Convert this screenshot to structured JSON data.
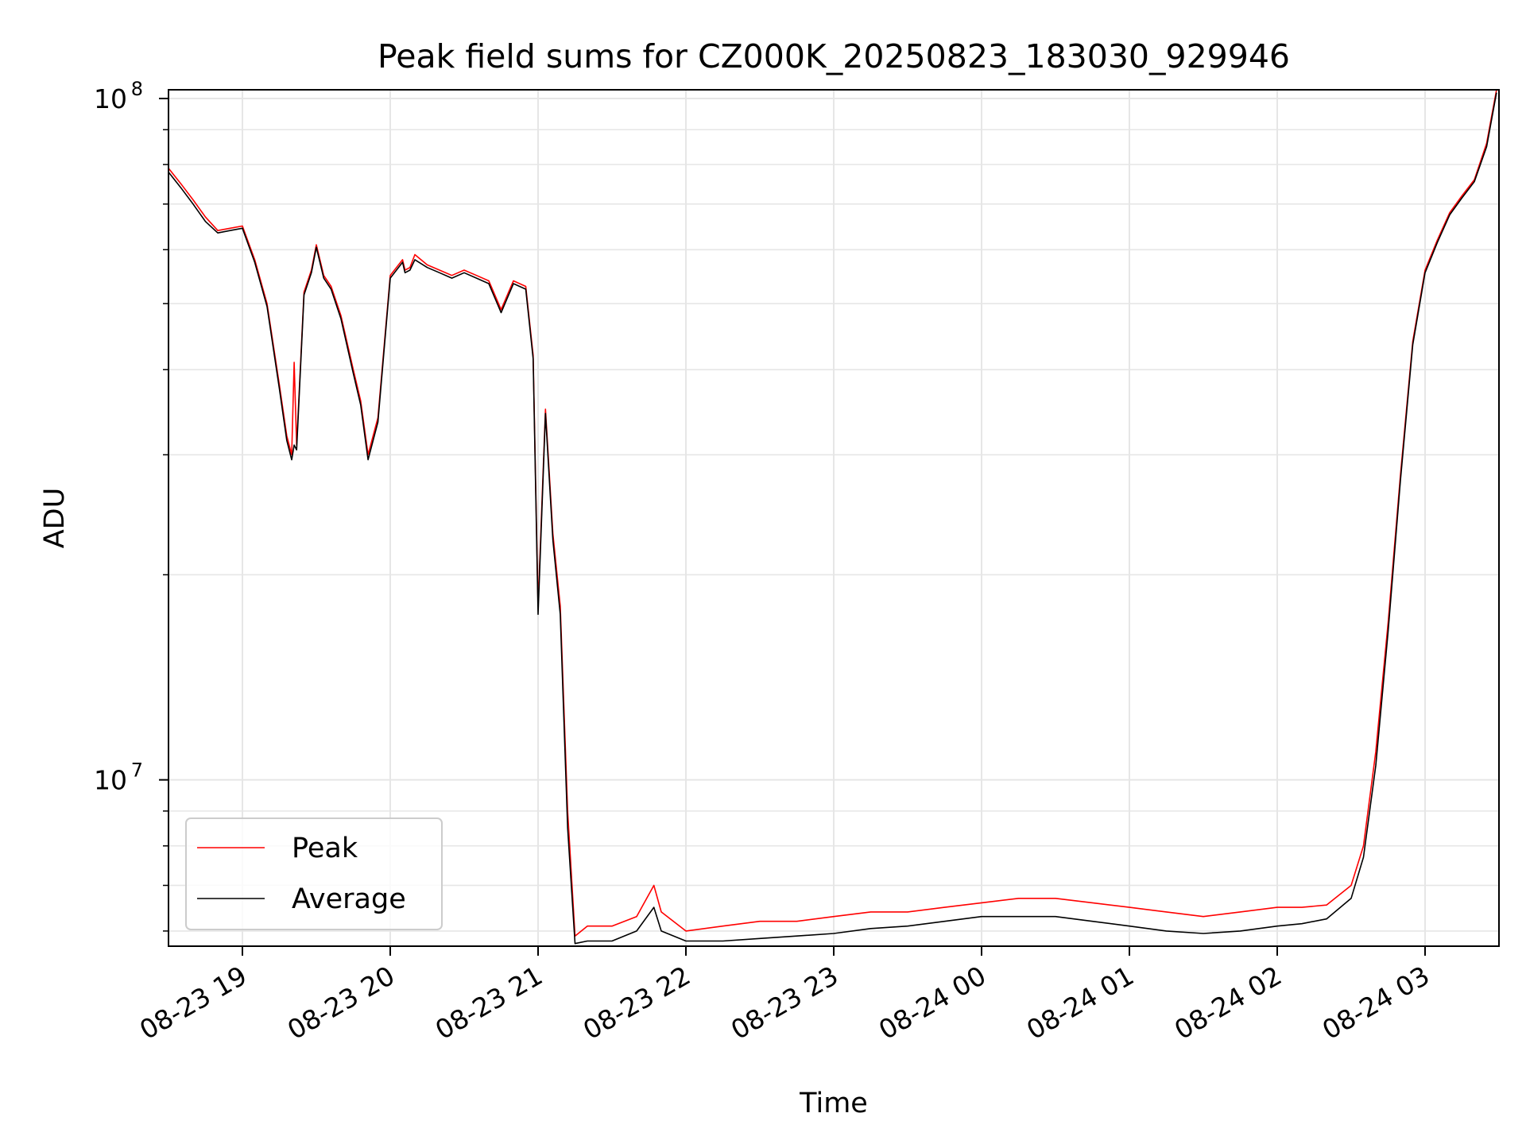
{
  "chart_data": {
    "type": "line",
    "title": "Peak field sums for CZ000K_20250823_183030_929946",
    "xlabel": "Time",
    "ylabel": "ADU",
    "yscale": "log",
    "ylim": [
      5700000,
      103000000
    ],
    "xlim": [
      "2025-08-23 18:30",
      "2025-08-24 03:30"
    ],
    "x_ticks": [
      "08-23 19",
      "08-23 20",
      "08-23 21",
      "08-23 22",
      "08-23 23",
      "08-24 00",
      "08-24 01",
      "08-24 02",
      "08-24 03"
    ],
    "y_ticks": [
      {
        "base": "10",
        "exp": "7"
      },
      {
        "base": "10",
        "exp": "8"
      }
    ],
    "grid": true,
    "legend": {
      "position": "lower-left",
      "entries": [
        "Peak",
        "Average"
      ]
    },
    "colors": {
      "Peak": "#ff0000",
      "Average": "#000000",
      "grid": "#e6e6e6"
    },
    "x": [
      "2025-08-23 18:30",
      "2025-08-23 18:35",
      "2025-08-23 18:40",
      "2025-08-23 18:45",
      "2025-08-23 18:50",
      "2025-08-23 18:55",
      "2025-08-23 19:00",
      "2025-08-23 19:05",
      "2025-08-23 19:10",
      "2025-08-23 19:15",
      "2025-08-23 19:18",
      "2025-08-23 19:20",
      "2025-08-23 19:21",
      "2025-08-23 19:22",
      "2025-08-23 19:25",
      "2025-08-23 19:28",
      "2025-08-23 19:30",
      "2025-08-23 19:33",
      "2025-08-23 19:36",
      "2025-08-23 19:40",
      "2025-08-23 19:45",
      "2025-08-23 19:48",
      "2025-08-23 19:51",
      "2025-08-23 19:55",
      "2025-08-23 20:00",
      "2025-08-23 20:05",
      "2025-08-23 20:06",
      "2025-08-23 20:08",
      "2025-08-23 20:10",
      "2025-08-23 20:15",
      "2025-08-23 20:20",
      "2025-08-23 20:25",
      "2025-08-23 20:30",
      "2025-08-23 20:35",
      "2025-08-23 20:40",
      "2025-08-23 20:45",
      "2025-08-23 20:50",
      "2025-08-23 20:55",
      "2025-08-23 20:58",
      "2025-08-23 21:00",
      "2025-08-23 21:03",
      "2025-08-23 21:06",
      "2025-08-23 21:09",
      "2025-08-23 21:12",
      "2025-08-23 21:15",
      "2025-08-23 21:20",
      "2025-08-23 21:30",
      "2025-08-23 21:40",
      "2025-08-23 21:47",
      "2025-08-23 21:50",
      "2025-08-23 22:00",
      "2025-08-23 22:15",
      "2025-08-23 22:30",
      "2025-08-23 22:45",
      "2025-08-23 23:00",
      "2025-08-23 23:15",
      "2025-08-23 23:30",
      "2025-08-23 23:45",
      "2025-08-24 00:00",
      "2025-08-24 00:15",
      "2025-08-24 00:30",
      "2025-08-24 00:45",
      "2025-08-24 01:00",
      "2025-08-24 01:15",
      "2025-08-24 01:30",
      "2025-08-24 01:45",
      "2025-08-24 02:00",
      "2025-08-24 02:10",
      "2025-08-24 02:20",
      "2025-08-24 02:30",
      "2025-08-24 02:35",
      "2025-08-24 02:40",
      "2025-08-24 02:45",
      "2025-08-24 02:50",
      "2025-08-24 02:55",
      "2025-08-24 03:00",
      "2025-08-24 03:05",
      "2025-08-24 03:10",
      "2025-08-24 03:15",
      "2025-08-24 03:20",
      "2025-08-24 03:25",
      "2025-08-24 03:29"
    ],
    "series": [
      {
        "name": "Peak",
        "values": [
          79000000,
          75000000,
          71000000,
          67000000,
          64000000,
          64500000,
          65000000,
          58000000,
          50000000,
          38000000,
          32000000,
          30000000,
          41000000,
          31000000,
          52000000,
          56000000,
          61000000,
          55000000,
          53000000,
          48000000,
          40000000,
          36000000,
          30000000,
          34000000,
          55000000,
          58000000,
          56000000,
          56500000,
          59000000,
          57000000,
          56000000,
          55000000,
          56000000,
          55000000,
          54000000,
          49000000,
          54000000,
          53000000,
          42000000,
          18000000,
          35000000,
          23000000,
          18000000,
          9000000,
          5900000,
          6100000,
          6100000,
          6300000,
          7000000,
          6400000,
          6000000,
          6100000,
          6200000,
          6200000,
          6300000,
          6400000,
          6400000,
          6500000,
          6600000,
          6700000,
          6700000,
          6600000,
          6500000,
          6400000,
          6300000,
          6400000,
          6500000,
          6500000,
          6550000,
          7000000,
          8000000,
          11000000,
          17000000,
          28000000,
          44000000,
          56000000,
          62000000,
          68000000,
          72000000,
          76000000,
          86000000,
          103000000
        ]
      },
      {
        "name": "Average",
        "values": [
          78000000,
          74000000,
          70000000,
          66000000,
          63500000,
          64000000,
          64500000,
          57500000,
          49500000,
          37500000,
          31500000,
          29500000,
          31000000,
          30500000,
          51500000,
          55500000,
          60500000,
          54500000,
          52500000,
          47500000,
          39500000,
          35500000,
          29500000,
          33500000,
          54500000,
          57500000,
          55500000,
          56000000,
          58000000,
          56500000,
          55500000,
          54500000,
          55500000,
          54500000,
          53500000,
          48500000,
          53500000,
          52500000,
          41500000,
          17500000,
          34500000,
          22500000,
          17500000,
          8500000,
          5750000,
          5800000,
          5800000,
          6000000,
          6500000,
          6000000,
          5800000,
          5800000,
          5850000,
          5900000,
          5950000,
          6050000,
          6100000,
          6200000,
          6300000,
          6300000,
          6300000,
          6200000,
          6100000,
          6000000,
          5950000,
          6000000,
          6100000,
          6150000,
          6250000,
          6700000,
          7700000,
          10500000,
          16500000,
          27500000,
          43500000,
          55500000,
          61500000,
          67500000,
          71500000,
          75500000,
          85000000,
          102000000
        ]
      }
    ]
  }
}
